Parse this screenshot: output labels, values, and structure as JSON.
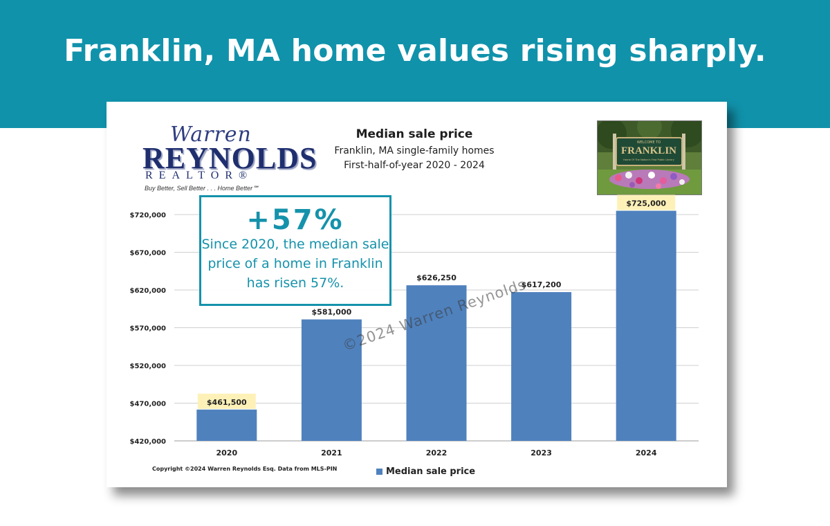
{
  "headline": "Franklin, MA home values rising sharply.",
  "logo": {
    "script": "Warren",
    "main": "REYNOLDS",
    "sub": "REALTOR®",
    "tagline": "Buy Better, Sell Better . . . Home Better℠"
  },
  "photo_sign": {
    "small": "WELCOME TO",
    "name": "FRANKLIN",
    "motto": "Home Of The Nation's First Public Library"
  },
  "callout": {
    "big": "+57%",
    "text": "Since 2020, the median sale price of a home in Franklin has risen 57%."
  },
  "copyright": "Copyright ©2024 Warren Reynolds Esq. Data from MLS-PIN",
  "watermark": "©2024 Warren Reynolds",
  "colors": {
    "banner": "#1192ab",
    "bar": "#4f81bd",
    "highlight": "#fdf1b8",
    "callout": "#1592ab"
  },
  "chart_data": {
    "type": "bar",
    "title": "Median sale price",
    "subtitle": "Franklin, MA single-family homes",
    "subtitle2": "First-half-of-year 2020 - 2024",
    "categories": [
      "2020",
      "2021",
      "2022",
      "2023",
      "2024"
    ],
    "series": [
      {
        "name": "Median sale price",
        "values": [
          461500,
          581000,
          626250,
          617200,
          725000
        ]
      }
    ],
    "data_labels": [
      "$461,500",
      "$581,000",
      "$626,250",
      "$617,200",
      "$725,000"
    ],
    "highlighted_labels": [
      "2020",
      "2024"
    ],
    "ylim": [
      420000,
      720000
    ],
    "yticks": [
      420000,
      470000,
      520000,
      570000,
      620000,
      670000,
      720000
    ],
    "ytick_labels": [
      "$420,000",
      "$470,000",
      "$520,000",
      "$570,000",
      "$620,000",
      "$670,000",
      "$720,000"
    ],
    "grid": true,
    "legend": "bottom"
  }
}
